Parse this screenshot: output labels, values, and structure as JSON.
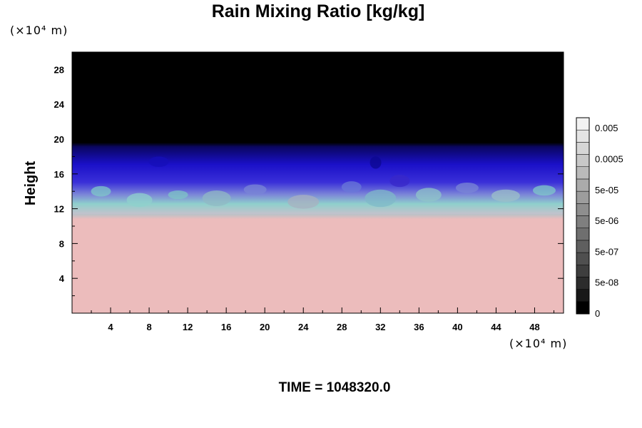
{
  "chart_data": {
    "type": "heatmap",
    "title": "Rain Mixing Ratio [kg/kg]",
    "ylabel": "Height",
    "xlabel": "",
    "y_unit": "(×10⁴ m)",
    "x_unit": "(×10⁴ m)",
    "x_ticks": [
      4,
      8,
      12,
      16,
      20,
      24,
      28,
      32,
      36,
      40,
      44,
      48
    ],
    "y_ticks": [
      4,
      8,
      12,
      16,
      20,
      24,
      28
    ],
    "xlim": [
      0,
      51
    ],
    "ylim": [
      0,
      30
    ],
    "time_label": "TIME = 1048320.0",
    "colorbar": {
      "labels": [
        "0.005",
        "0.0005",
        "5e-05",
        "5e-06",
        "5e-07",
        "5e-08",
        "0"
      ],
      "levels": 16,
      "bottom_color": "#000000",
      "top_color": "#f2f2f2"
    },
    "regions": [
      {
        "name": "upper (no data)",
        "y_from": 19.5,
        "y_to": 30,
        "color": "#000000"
      },
      {
        "name": "deep blue band",
        "y_from": 16,
        "y_to": 19.5,
        "color": "#1a10c8"
      },
      {
        "name": "light mixing band",
        "y_from": 11.5,
        "y_to": 16,
        "color": "#9fb8c4"
      },
      {
        "name": "lower field",
        "y_from": 0,
        "y_to": 11.5,
        "color": "#ecbcbc"
      }
    ],
    "grid": false
  }
}
